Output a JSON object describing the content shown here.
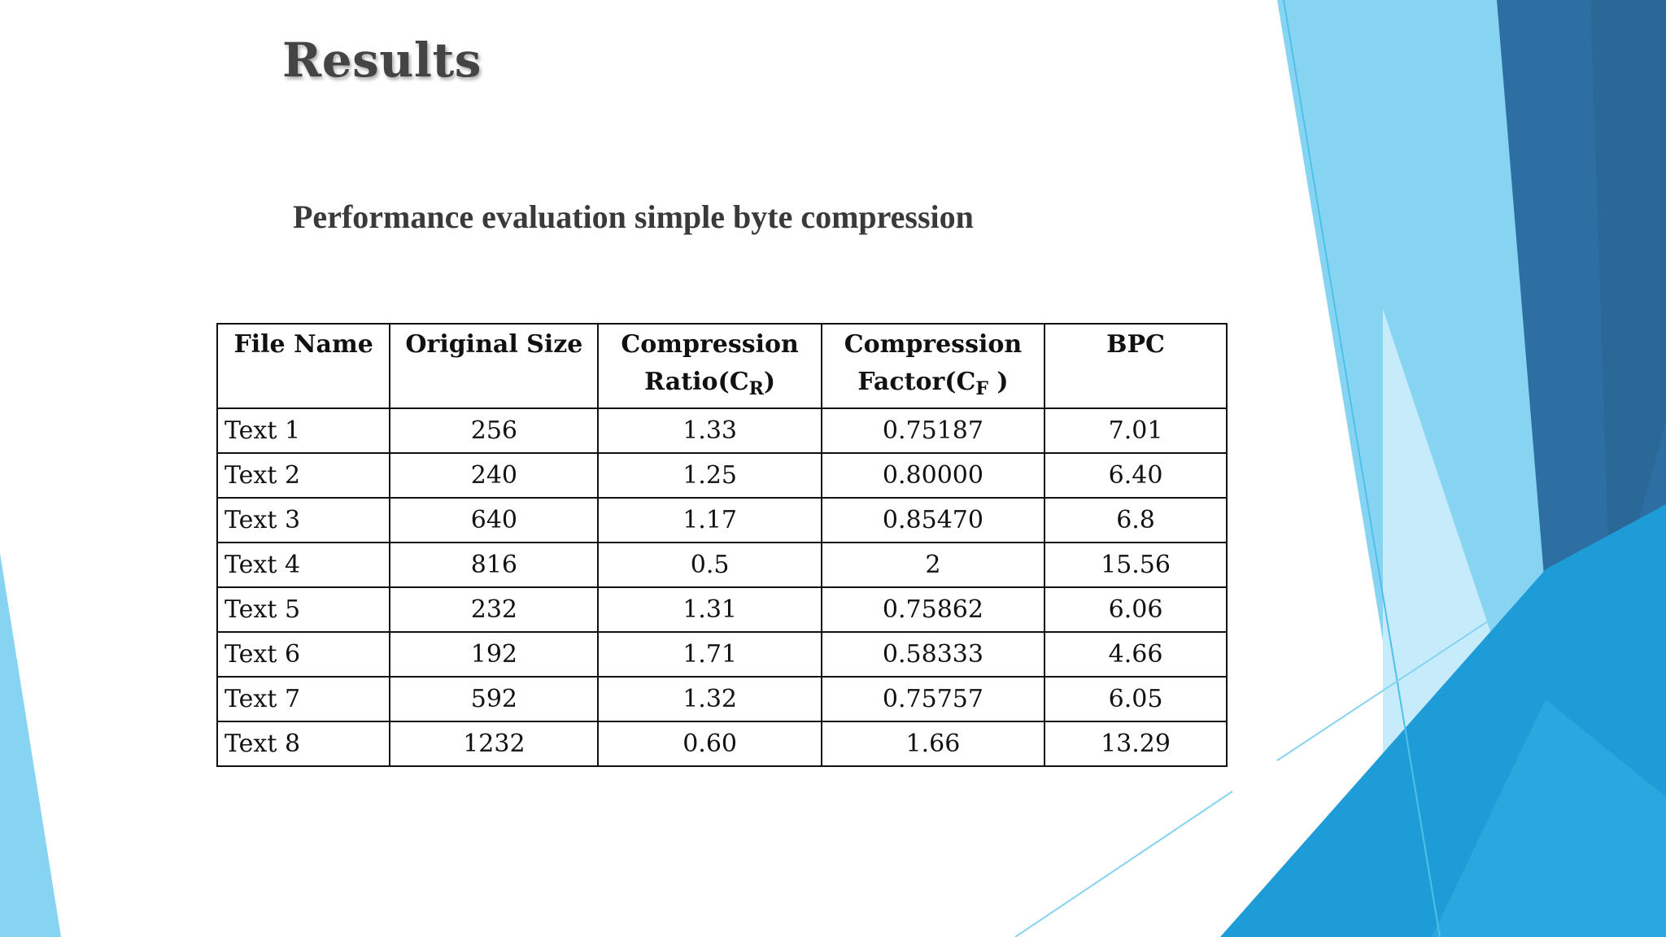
{
  "slide": {
    "title": "Results",
    "subtitle": "Performance evaluation simple byte compression",
    "accent_colors": [
      "#2e6fa3",
      "#1d9cd8",
      "#4fc0ea",
      "#87d3f2",
      "#c6ebfa"
    ]
  },
  "table": {
    "headers": {
      "file_name": "File Name",
      "original_size": "Original Size",
      "ratio_line1": "Compression",
      "ratio_line2": "Ratio(C",
      "ratio_sub": "R",
      "ratio_close": ")",
      "factor_line1": "Compression",
      "factor_line2": "Factor(C",
      "factor_sub": "F",
      "factor_close": " )",
      "bpc": "BPC"
    },
    "rows": [
      {
        "file_name": "Text 1",
        "original_size": "256",
        "ratio": "1.33",
        "factor": "0.75187",
        "bpc": "7.01"
      },
      {
        "file_name": "Text 2",
        "original_size": "240",
        "ratio": "1.25",
        "factor": "0.80000",
        "bpc": "6.40"
      },
      {
        "file_name": "Text 3",
        "original_size": "640",
        "ratio": "1.17",
        "factor": "0.85470",
        "bpc": "6.8"
      },
      {
        "file_name": "Text 4",
        "original_size": "816",
        "ratio": "0.5",
        "factor": "2",
        "bpc": "15.56"
      },
      {
        "file_name": "Text 5",
        "original_size": "232",
        "ratio": "1.31",
        "factor": "0.75862",
        "bpc": "6.06"
      },
      {
        "file_name": "Text 6",
        "original_size": "192",
        "ratio": "1.71",
        "factor": "0.58333",
        "bpc": "4.66"
      },
      {
        "file_name": "Text 7",
        "original_size": "592",
        "ratio": "1.32",
        "factor": "0.75757",
        "bpc": "6.05"
      },
      {
        "file_name": "Text 8",
        "original_size": "1232",
        "ratio": "0.60",
        "factor": "1.66",
        "bpc": "13.29"
      }
    ]
  }
}
